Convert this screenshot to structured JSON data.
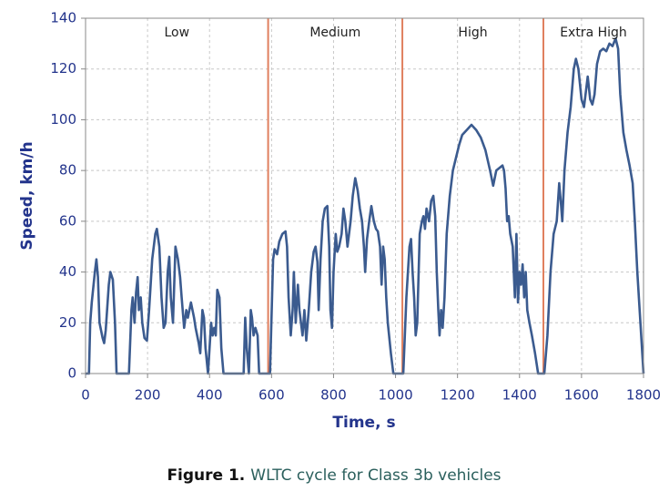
{
  "chart_data": {
    "type": "line",
    "xlabel": "Time, s",
    "ylabel": "Speed, km/h",
    "color": "#3b5b8f",
    "grid": true,
    "xlim": [
      0,
      1800
    ],
    "xticks": [
      0,
      200,
      400,
      600,
      800,
      1000,
      1200,
      1400,
      1600,
      1800
    ],
    "ylim": [
      0,
      140
    ],
    "yticks": [
      0,
      20,
      40,
      60,
      80,
      100,
      120,
      140
    ],
    "phase_boundaries": [
      589,
      1022,
      1477
    ],
    "boundary_color": "#e0805f",
    "phase_labels": [
      "Low",
      "Medium",
      "High",
      "Extra High"
    ],
    "x": [
      0,
      11,
      15,
      20,
      30,
      35,
      40,
      45,
      50,
      55,
      60,
      65,
      75,
      80,
      88,
      95,
      100,
      140,
      148,
      152,
      158,
      163,
      168,
      172,
      178,
      183,
      190,
      198,
      205,
      215,
      225,
      230,
      238,
      245,
      252,
      258,
      265,
      270,
      275,
      282,
      290,
      298,
      305,
      310,
      318,
      325,
      330,
      340,
      350,
      355,
      365,
      370,
      377,
      382,
      387,
      395,
      405,
      410,
      415,
      420,
      425,
      432,
      438,
      445,
      510,
      515,
      520,
      527,
      533,
      537,
      542,
      548,
      555,
      560,
      589,
      595,
      605,
      610,
      618,
      625,
      635,
      645,
      650,
      655,
      662,
      668,
      672,
      678,
      685,
      690,
      700,
      706,
      712,
      720,
      728,
      736,
      742,
      748,
      752,
      758,
      765,
      772,
      780,
      786,
      790,
      795,
      800,
      807,
      812,
      818,
      826,
      832,
      838,
      845,
      855,
      862,
      870,
      878,
      885,
      892,
      898,
      902,
      908,
      915,
      922,
      930,
      937,
      943,
      950,
      955,
      960,
      965,
      970,
      975,
      985,
      993,
      1022,
      1025,
      1035,
      1045,
      1050,
      1055,
      1060,
      1065,
      1070,
      1078,
      1085,
      1090,
      1095,
      1100,
      1108,
      1115,
      1122,
      1128,
      1133,
      1138,
      1142,
      1147,
      1152,
      1158,
      1165,
      1175,
      1185,
      1195,
      1205,
      1215,
      1230,
      1245,
      1260,
      1275,
      1290,
      1305,
      1315,
      1325,
      1335,
      1345,
      1350,
      1355,
      1360,
      1365,
      1370,
      1378,
      1385,
      1390,
      1395,
      1400,
      1405,
      1410,
      1415,
      1420,
      1425,
      1432,
      1440,
      1450,
      1460,
      1477,
      1480,
      1490,
      1500,
      1510,
      1520,
      1528,
      1533,
      1538,
      1545,
      1555,
      1565,
      1575,
      1582,
      1590,
      1600,
      1608,
      1615,
      1620,
      1628,
      1635,
      1642,
      1650,
      1660,
      1670,
      1680,
      1690,
      1700,
      1710,
      1718,
      1725,
      1735,
      1745,
      1755,
      1765,
      1772,
      1780,
      1790,
      1800
    ],
    "values": [
      0,
      0,
      20,
      28,
      40,
      45,
      38,
      20,
      17,
      14,
      12,
      17,
      35,
      40,
      37,
      20,
      0,
      0,
      25,
      30,
      20,
      32,
      38,
      25,
      30,
      20,
      14,
      13,
      25,
      45,
      55,
      57,
      50,
      30,
      18,
      20,
      40,
      46,
      30,
      20,
      50,
      45,
      38,
      30,
      18,
      25,
      22,
      28,
      22,
      18,
      12,
      8,
      25,
      22,
      10,
      0,
      20,
      15,
      18,
      15,
      33,
      30,
      10,
      0,
      0,
      22,
      10,
      0,
      25,
      22,
      15,
      18,
      15,
      0,
      0,
      0,
      45,
      49,
      47,
      52,
      55,
      56,
      50,
      30,
      15,
      25,
      40,
      20,
      35,
      25,
      15,
      25,
      13,
      25,
      40,
      48,
      50,
      44,
      25,
      45,
      60,
      65,
      66,
      50,
      25,
      18,
      40,
      55,
      48,
      50,
      55,
      65,
      60,
      50,
      60,
      70,
      77,
      72,
      65,
      60,
      50,
      40,
      53,
      60,
      66,
      60,
      57,
      56,
      50,
      35,
      50,
      45,
      30,
      20,
      8,
      0,
      0,
      0,
      30,
      50,
      53,
      40,
      30,
      15,
      20,
      55,
      60,
      62,
      57,
      65,
      60,
      68,
      70,
      62,
      40,
      25,
      15,
      25,
      18,
      30,
      55,
      70,
      80,
      85,
      90,
      94,
      96,
      98,
      96,
      93,
      88,
      80,
      74,
      80,
      81,
      82,
      80,
      73,
      60,
      62,
      55,
      50,
      30,
      55,
      28,
      40,
      35,
      43,
      30,
      40,
      25,
      20,
      15,
      8,
      0,
      0,
      0,
      15,
      40,
      55,
      60,
      75,
      68,
      60,
      80,
      95,
      105,
      120,
      124,
      120,
      108,
      105,
      112,
      117,
      108,
      106,
      110,
      122,
      127,
      128,
      127,
      130,
      129,
      132,
      128,
      110,
      95,
      88,
      82,
      75,
      60,
      40,
      20,
      0
    ]
  },
  "caption": {
    "label": "Figure 1.",
    "text": "WLTC cycle for Class 3b vehicles"
  }
}
